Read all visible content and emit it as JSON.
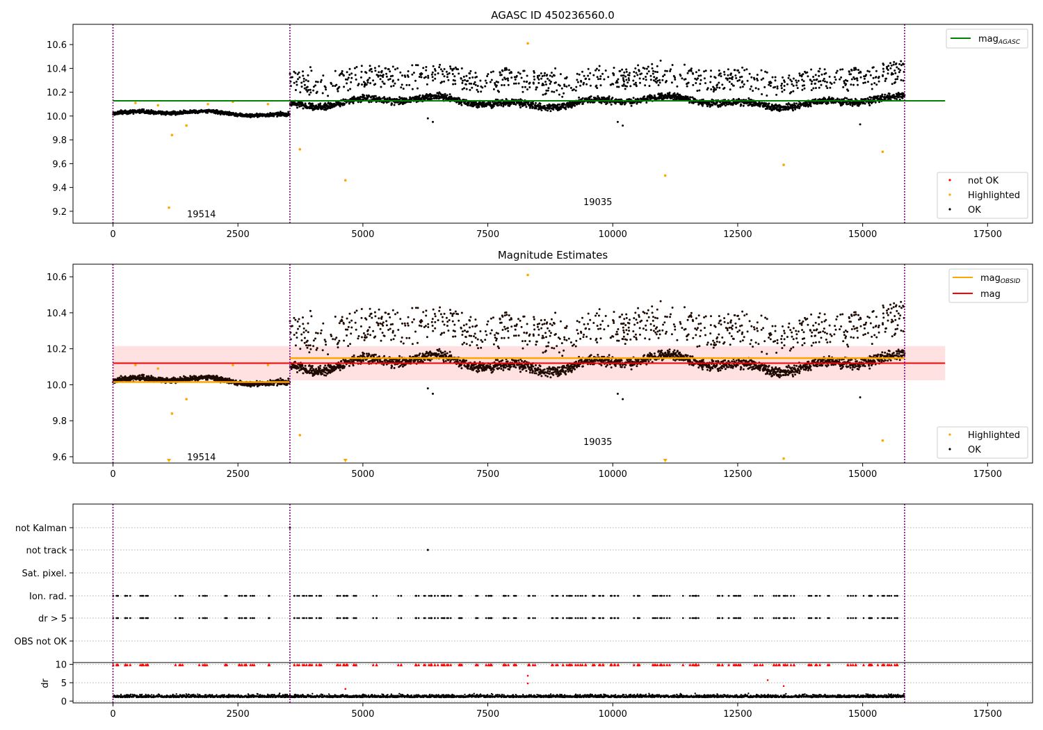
{
  "chart_data": [
    {
      "type": "scatter",
      "title": "AGASC ID 450236560.0",
      "xlim": [
        -800,
        18400
      ],
      "ylim": [
        9.1,
        10.77
      ],
      "xticks": [
        0,
        2500,
        5000,
        7500,
        10000,
        12500,
        15000,
        17500
      ],
      "yticks": [
        9.2,
        9.4,
        9.6,
        9.8,
        10.0,
        10.2,
        10.4,
        10.6
      ],
      "vlines": [
        0,
        3540,
        15840
      ],
      "obsid_labels": [
        {
          "text": "19514",
          "x": 1770,
          "y": 9.18
        },
        {
          "text": "19035",
          "x": 9700,
          "y": 9.28
        }
      ],
      "hlines": [
        {
          "name": "mag_AGASC",
          "y": 10.128,
          "x0": 0,
          "x1": 16650,
          "color": "#008000"
        }
      ],
      "segments": [
        {
          "x0": 0,
          "x1": 3540,
          "center": 10.02,
          "spread": 0.025
        },
        {
          "x0": 3540,
          "x1": 15840,
          "center": 10.12,
          "spread": 0.05
        }
      ],
      "highlighted_points": [
        [
          1120,
          9.23
        ],
        [
          1180,
          9.84
        ],
        [
          1470,
          9.92
        ],
        [
          3740,
          9.72
        ],
        [
          4650,
          9.46
        ],
        [
          8300,
          10.61
        ],
        [
          11050,
          9.5
        ],
        [
          13420,
          9.59
        ],
        [
          15400,
          9.7
        ],
        [
          450,
          10.11
        ],
        [
          900,
          10.09
        ],
        [
          1900,
          10.1
        ],
        [
          2400,
          10.12
        ],
        [
          3100,
          10.1
        ]
      ],
      "outlier_points": [
        [
          3950,
          10.41
        ],
        [
          6300,
          9.98
        ],
        [
          6400,
          9.95
        ],
        [
          8850,
          10.4
        ],
        [
          10100,
          9.95
        ],
        [
          10200,
          9.92
        ],
        [
          14950,
          9.93
        ],
        [
          11500,
          10.36
        ]
      ],
      "legend_location": "top-right",
      "legend_lower_location": "lower-right",
      "legend": {
        "line_label": "mag",
        "line_subscript": "AGASC",
        "scatter": [
          {
            "label": "not OK",
            "color": "#ff0000"
          },
          {
            "label": "Highlighted",
            "color": "#ffa500"
          },
          {
            "label": "OK",
            "color": "#000000"
          }
        ]
      }
    },
    {
      "type": "scatter",
      "title": "Magnitude Estimates",
      "xlim": [
        -800,
        18400
      ],
      "ylim": [
        9.565,
        10.67
      ],
      "xticks": [
        0,
        2500,
        5000,
        7500,
        10000,
        12500,
        15000,
        17500
      ],
      "yticks": [
        9.6,
        9.8,
        10.0,
        10.2,
        10.4,
        10.6
      ],
      "vlines": [
        0,
        3540,
        15840
      ],
      "obsid_labels": [
        {
          "text": "19514",
          "x": 1770,
          "y": 9.6
        },
        {
          "text": "19035",
          "x": 9700,
          "y": 9.685
        }
      ],
      "band": {
        "y0": 10.025,
        "y1": 10.215,
        "x0": 0,
        "x1": 16650,
        "color": "#ffc8c8"
      },
      "hlines": [
        {
          "name": "mag",
          "y": 10.12,
          "x0": 0,
          "x1": 16650,
          "color": "#ff0000"
        }
      ],
      "obsid_lines": [
        {
          "x0": 0,
          "x1": 3540,
          "y": 10.015,
          "color": "#ffa500"
        },
        {
          "x0": 3540,
          "x1": 15840,
          "y": 10.148,
          "color": "#ffa500"
        }
      ],
      "segments": [
        {
          "x0": 0,
          "x1": 3540,
          "center": 10.02,
          "spread": 0.025
        },
        {
          "x0": 3540,
          "x1": 15840,
          "center": 10.12,
          "spread": 0.05
        }
      ],
      "highlighted_points": [
        [
          1180,
          9.84
        ],
        [
          1470,
          9.92
        ],
        [
          3740,
          9.72
        ],
        [
          8300,
          10.61
        ],
        [
          13420,
          9.59
        ],
        [
          15400,
          9.69
        ],
        [
          450,
          10.11
        ],
        [
          900,
          10.09
        ],
        [
          2400,
          10.11
        ],
        [
          3100,
          10.11
        ]
      ],
      "offscale_markers": [
        1120,
        4650,
        11050
      ],
      "outlier_points": [
        [
          3950,
          10.41
        ],
        [
          6300,
          9.98
        ],
        [
          6400,
          9.95
        ],
        [
          8850,
          10.4
        ],
        [
          10100,
          9.95
        ],
        [
          10200,
          9.92
        ],
        [
          14950,
          9.93
        ],
        [
          11500,
          10.36
        ]
      ],
      "legend_location": "top-right",
      "legend_lower_location": "lower-right",
      "legend": {
        "lines": [
          {
            "label": "mag",
            "subscript": "OBSID",
            "color": "#ffa500"
          },
          {
            "label": "mag",
            "subscript": "",
            "color": "#ff0000"
          }
        ],
        "scatter": [
          {
            "label": "Highlighted",
            "color": "#ffa500"
          },
          {
            "label": "OK",
            "color": "#000000"
          }
        ]
      }
    },
    {
      "type": "scatter",
      "xlim": [
        -800,
        18400
      ],
      "categories": [
        "OBS not OK",
        "dr > 5",
        "Ion. rad.",
        "Sat. pixel.",
        "not track",
        "not Kalman"
      ],
      "vlines": [
        0,
        3540,
        15840
      ],
      "flag_points": {
        "not Kalman": [
          3540
        ],
        "not track": [
          6300
        ]
      },
      "flag_clusters_x": [
        [
          0,
          350
        ],
        [
          420,
          700
        ],
        [
          1250,
          1400
        ],
        [
          1650,
          1900
        ],
        [
          2200,
          2300
        ],
        [
          2500,
          2900
        ],
        [
          3050,
          3150
        ],
        [
          3600,
          4000
        ],
        [
          4050,
          4200
        ],
        [
          4350,
          4700
        ],
        [
          4800,
          4950
        ],
        [
          5200,
          5300
        ],
        [
          5700,
          5800
        ],
        [
          6000,
          6250
        ],
        [
          6250,
          7000
        ],
        [
          7200,
          7300
        ],
        [
          7450,
          7700
        ],
        [
          7800,
          8100
        ],
        [
          8300,
          8500
        ],
        [
          8750,
          8900
        ],
        [
          9000,
          9500
        ],
        [
          9600,
          10200
        ],
        [
          10400,
          10600
        ],
        [
          10800,
          11200
        ],
        [
          11400,
          11800
        ],
        [
          12100,
          12600
        ],
        [
          12800,
          13000
        ],
        [
          13200,
          13700
        ],
        [
          13900,
          14150
        ],
        [
          14300,
          14350
        ],
        [
          14700,
          15200
        ],
        [
          15300,
          15700
        ]
      ],
      "xticks": [
        0,
        2500,
        5000,
        7500,
        10000,
        12500,
        15000,
        17500
      ]
    },
    {
      "type": "scatter",
      "xlim": [
        -800,
        18400
      ],
      "ylabel": "dr",
      "ylim": [
        -0.5,
        10.5
      ],
      "yticks": [
        0,
        5,
        10
      ],
      "xticks": [
        0,
        2500,
        5000,
        7500,
        10000,
        12500,
        15000,
        17500
      ],
      "vlines": [
        0,
        3540,
        15840
      ],
      "baseline_center": 1.0,
      "red_points": [
        [
          4650,
          3.3
        ],
        [
          8300,
          4.8
        ],
        [
          8300,
          6.9
        ],
        [
          13100,
          5.7
        ],
        [
          13420,
          4.1
        ]
      ]
    }
  ],
  "colors": {
    "ok": "#000000",
    "highlighted": "#ffa500",
    "notok": "#ff0000",
    "vline": "#800080",
    "agasc_line": "#008000"
  }
}
